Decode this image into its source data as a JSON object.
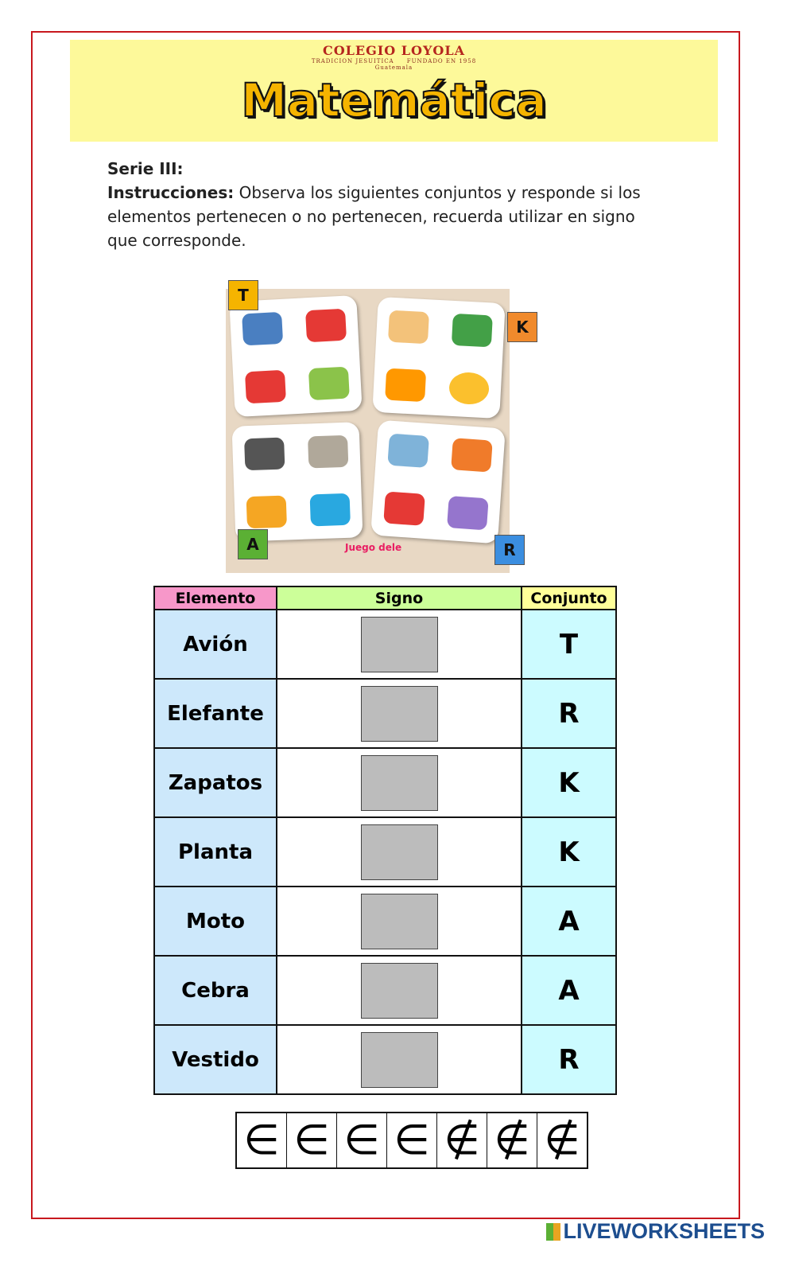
{
  "header": {
    "logo_name": "COLEGIO LOYOLA",
    "logo_left": "TRADICION JESUITICA",
    "logo_right": "FUNDADO EN 1958",
    "logo_city": "Guatemala",
    "title": "Matemática"
  },
  "instructions": {
    "serie": "Serie III:",
    "label": "Instrucciones:",
    "text": "Observa los siguientes conjuntos y responde si los elementos pertenecen o no pertenecen, recuerda utilizar en signo que corresponde."
  },
  "picture": {
    "sets": [
      {
        "label": "T",
        "color": "#f5b400"
      },
      {
        "label": "K",
        "color": "#f08a2c"
      },
      {
        "label": "A",
        "color": "#5bb034"
      },
      {
        "label": "R",
        "color": "#3b8ee0"
      }
    ],
    "watermark": "Juego dele"
  },
  "table": {
    "headers": {
      "element": "Elemento",
      "sign": "Signo",
      "set": "Conjunto"
    },
    "header_colors": {
      "element": "#f797c9",
      "sign": "#ccff99",
      "set": "#ffff99"
    },
    "rows": [
      {
        "element": "Avión",
        "set": "T"
      },
      {
        "element": "Elefante",
        "set": "R"
      },
      {
        "element": "Zapatos",
        "set": "K"
      },
      {
        "element": "Planta",
        "set": "K"
      },
      {
        "element": "Moto",
        "set": "A"
      },
      {
        "element": "Cebra",
        "set": "A"
      },
      {
        "element": "Vestido",
        "set": "R"
      }
    ]
  },
  "symbols": [
    "∈",
    "∈",
    "∈",
    "∈",
    "∉",
    "∉",
    "∉"
  ],
  "footer": {
    "brand": "LIVEWORKSHEETS"
  }
}
